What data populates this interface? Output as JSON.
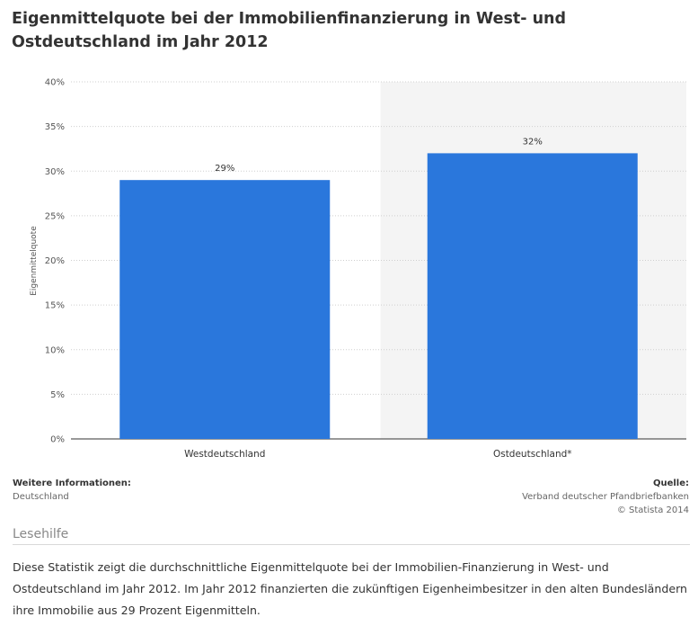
{
  "title": "Eigenmittelquote bei der Immobilienfinanzierung in West- und Ostdeutschland im Jahr 2012",
  "chart_data": {
    "type": "bar",
    "title": "Eigenmittelquote bei der Immobilienfinanzierung in West- und Ostdeutschland im Jahr 2012",
    "categories": [
      "Westdeutschland",
      "Ostdeutschland*"
    ],
    "values": [
      29,
      32
    ],
    "data_labels": [
      "29%",
      "32%"
    ],
    "xlabel": "",
    "ylabel": "Eigenmittelquote",
    "ylim": [
      0,
      40
    ],
    "yticks": [
      0,
      5,
      10,
      15,
      20,
      25,
      30,
      35,
      40
    ],
    "ytick_labels": [
      "0%",
      "5%",
      "10%",
      "15%",
      "20%",
      "25%",
      "30%",
      "35%",
      "40%"
    ],
    "grid": true,
    "bar_color": "#2a77dc",
    "highlight_band_color": "#f4f4f4"
  },
  "info": {
    "left_head": "Weitere Informationen:",
    "left_value": "Deutschland",
    "right_head": "Quelle:",
    "right_source": "Verband deutscher Pfandbriefbanken",
    "right_copyright": "© Statista 2014"
  },
  "lesehilfe": {
    "heading": "Lesehilfe",
    "text": "Diese Statistik zeigt die durchschnittliche Eigenmittelquote bei der Immobilien-Finanzierung in West- und Ostdeutschland im Jahr 2012. Im Jahr 2012 finanzierten die zukünftigen Eigenheimbesitzer in den alten Bundesländern ihre Immobilie aus 29 Prozent Eigenmitteln."
  }
}
